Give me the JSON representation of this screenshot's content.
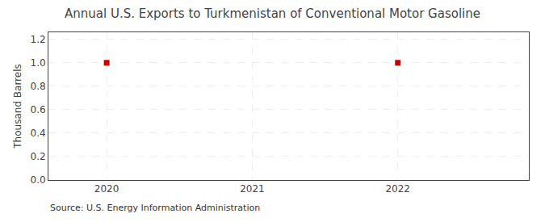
{
  "chart_data": {
    "type": "scatter",
    "title": "Annual U.S. Exports to Turkmenistan of Conventional Motor Gasoline",
    "ylabel": "Thousand Barrels",
    "annotations": [
      "Source: U.S. Energy Information Administration"
    ],
    "x": [
      2020,
      2022
    ],
    "values": [
      1.0,
      1.0
    ],
    "color": "#cc0000",
    "marker": "square",
    "xlim": [
      2019.6,
      2022.9
    ],
    "ylim": [
      0.0,
      1.26
    ],
    "xticks": [
      2020,
      2021,
      2022
    ],
    "yticks": [
      {
        "value": 0.0,
        "label": "0.0"
      },
      0.2,
      0.4,
      0.6,
      0.8,
      {
        "value": 1.0,
        "label": "1.0"
      },
      1.2
    ],
    "grid": true
  }
}
